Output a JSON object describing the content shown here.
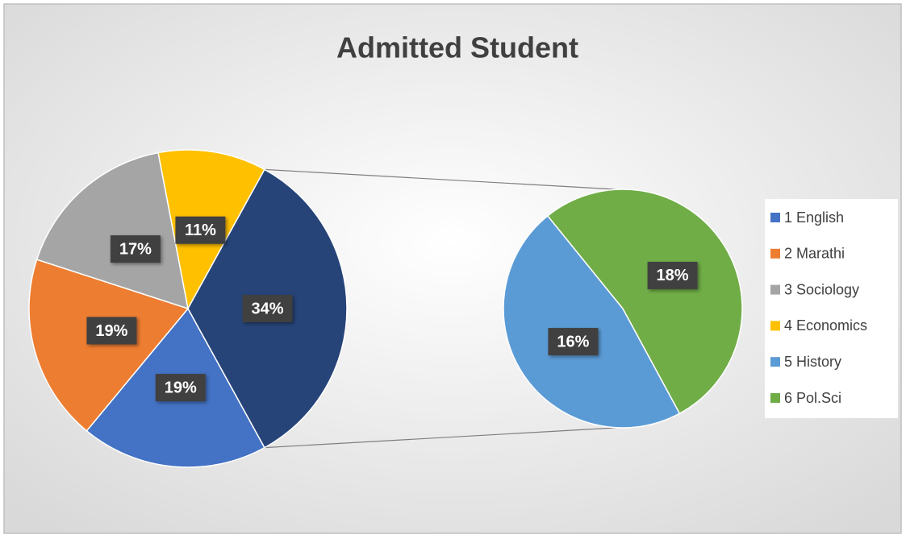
{
  "chart_data": {
    "type": "pie-of-pie",
    "title": "Admitted Student",
    "main": {
      "categories": [
        "1 English",
        "2 Marathi",
        "3 Sociology",
        "4 Economics",
        null
      ],
      "values": [
        19,
        19,
        17,
        11,
        34
      ],
      "value_labels": [
        "19%",
        "19%",
        "17%",
        "11%",
        "34%"
      ],
      "colors": [
        "#4472c4",
        "#ed7d31",
        "#a5a5a5",
        "#ffc000",
        "#264478"
      ]
    },
    "secondary": {
      "categories": [
        "5 History",
        "6 Pol.Sci"
      ],
      "values": [
        16,
        18
      ],
      "value_labels": [
        "16%",
        "18%"
      ],
      "colors": [
        "#5b9bd5",
        "#70ad47"
      ]
    },
    "legend": "right"
  }
}
